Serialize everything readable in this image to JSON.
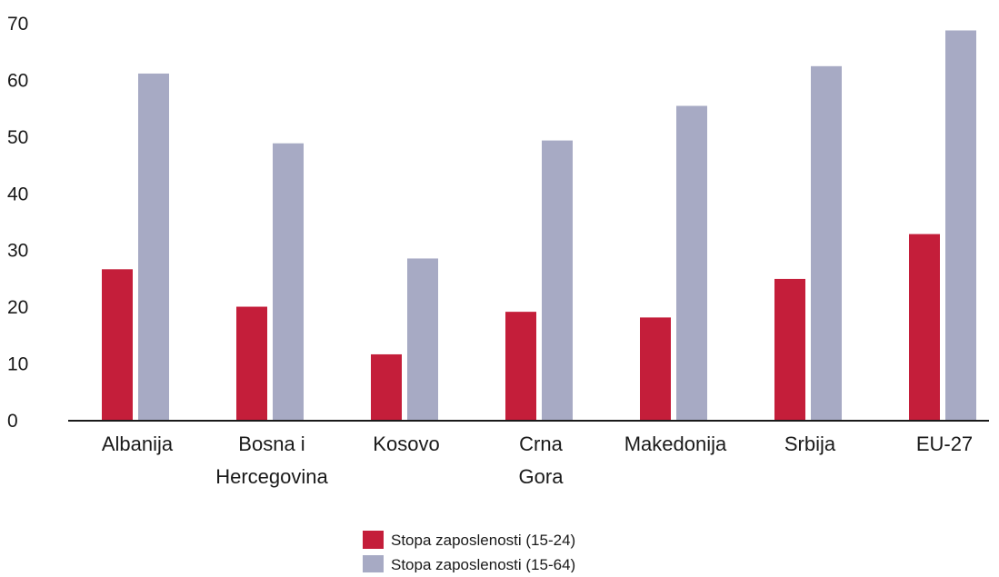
{
  "chart_data": {
    "type": "bar",
    "categories": [
      [
        "Albanija"
      ],
      [
        "Bosna i",
        "Hercegovina"
      ],
      [
        "Kosovo"
      ],
      [
        "Crna",
        "Gora"
      ],
      [
        "Makedonija"
      ],
      [
        "Srbija"
      ],
      [
        "EU-27"
      ]
    ],
    "series": [
      {
        "name": "Stopa zaposlenosti (15-24)",
        "color": "#c41e3a",
        "values": [
          26.7,
          20.1,
          11.7,
          19.2,
          18.2,
          25.0,
          32.9
        ]
      },
      {
        "name": "Stopa zaposlenosti (15-64)",
        "color": "#a7aac4",
        "values": [
          61.2,
          48.9,
          28.6,
          49.4,
          55.5,
          62.5,
          68.8
        ]
      }
    ],
    "y_ticks": [
      "0",
      "10",
      "20",
      "30",
      "40",
      "50",
      "60",
      "70"
    ],
    "ylim": [
      0,
      70
    ],
    "grid": false,
    "legend_position": "bottom-center"
  }
}
